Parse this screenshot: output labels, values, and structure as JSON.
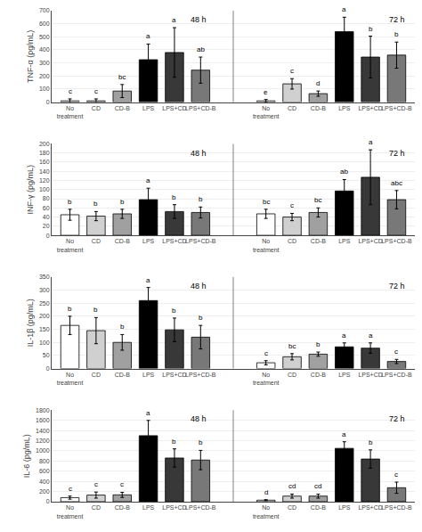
{
  "chart_data": [
    {
      "type": "bar",
      "ylabel": "TNF-α (pg/mL)",
      "ylim": [
        0,
        700
      ],
      "yticks": [
        0,
        100,
        200,
        300,
        400,
        500,
        600,
        700
      ],
      "grid": true,
      "categories": [
        "No\ntreatment",
        "CD",
        "CD-B",
        "LPS",
        "LPS+CD",
        "LPS+CD-B"
      ],
      "colors": [
        "#ffffff",
        "#d0d0d0",
        "#a0a0a0",
        "#000000",
        "#383838",
        "#787878"
      ],
      "edge_color": "#000000",
      "error_color": "#000000",
      "groups": [
        {
          "label": "48 h",
          "values": [
            10,
            10,
            85,
            325,
            380,
            245
          ],
          "errors": [
            15,
            15,
            50,
            120,
            190,
            100
          ],
          "annotations": [
            "c",
            "c",
            "bc",
            "a",
            "a",
            "ab"
          ]
        },
        {
          "label": "72 h",
          "values": [
            10,
            140,
            65,
            540,
            345,
            360
          ],
          "errors": [
            10,
            40,
            20,
            110,
            160,
            100
          ],
          "annotations": [
            "e",
            "c",
            "d",
            "a",
            "b",
            "b"
          ]
        }
      ]
    },
    {
      "type": "bar",
      "ylabel": "INF-γ (pg/mL)",
      "ylim": [
        0,
        200
      ],
      "yticks": [
        0,
        20,
        40,
        60,
        80,
        100,
        120,
        140,
        160,
        180,
        200
      ],
      "grid": true,
      "categories": [
        "No\ntreatment",
        "CD",
        "CD-B",
        "LPS",
        "LPS+CD",
        "LPS+CD-B"
      ],
      "colors": [
        "#ffffff",
        "#d0d0d0",
        "#a0a0a0",
        "#000000",
        "#383838",
        "#787878"
      ],
      "edge_color": "#000000",
      "error_color": "#000000",
      "groups": [
        {
          "label": "48 h",
          "values": [
            45,
            42,
            47,
            78,
            52,
            50
          ],
          "errors": [
            12,
            10,
            10,
            25,
            15,
            12
          ],
          "annotations": [
            "b",
            "b",
            "b",
            "a",
            "b",
            "b"
          ]
        },
        {
          "label": "72 h",
          "values": [
            47,
            40,
            50,
            97,
            127,
            78
          ],
          "errors": [
            10,
            8,
            10,
            25,
            60,
            20
          ],
          "annotations": [
            "bc",
            "c",
            "bc",
            "ab",
            "a",
            "abc"
          ]
        }
      ]
    },
    {
      "type": "bar",
      "ylabel": "IL-1β (pg/mL)",
      "ylim": [
        0,
        350
      ],
      "yticks": [
        0,
        50,
        100,
        150,
        200,
        250,
        300,
        350
      ],
      "grid": true,
      "categories": [
        "No\ntreatment",
        "CD",
        "CD-B",
        "LPS",
        "LPS+CD",
        "LPS+CD-B"
      ],
      "colors": [
        "#ffffff",
        "#d0d0d0",
        "#a0a0a0",
        "#000000",
        "#383838",
        "#787878"
      ],
      "edge_color": "#000000",
      "error_color": "#000000",
      "groups": [
        {
          "label": "48 h",
          "values": [
            165,
            145,
            100,
            260,
            148,
            120
          ],
          "errors": [
            35,
            50,
            30,
            50,
            45,
            45
          ],
          "annotations": [
            "b",
            "b",
            "b",
            "a",
            "b",
            "b"
          ]
        },
        {
          "label": "72 h",
          "values": [
            22,
            45,
            55,
            83,
            78,
            27
          ],
          "errors": [
            8,
            12,
            8,
            15,
            20,
            8
          ],
          "annotations": [
            "c",
            "bc",
            "b",
            "a",
            "a",
            "c"
          ]
        }
      ]
    },
    {
      "type": "bar",
      "ylabel": "IL-6 (pg/mL)",
      "ylim": [
        0,
        1800
      ],
      "yticks": [
        0,
        200,
        400,
        600,
        800,
        1000,
        1200,
        1400,
        1600,
        1800
      ],
      "grid": true,
      "categories": [
        "No\ntreatment",
        "CD",
        "CD-B",
        "LPS",
        "LPS+CD",
        "LPS+CD-B"
      ],
      "colors": [
        "#ffffff",
        "#d0d0d0",
        "#a0a0a0",
        "#000000",
        "#383838",
        "#787878"
      ],
      "edge_color": "#000000",
      "error_color": "#000000",
      "groups": [
        {
          "label": "48 h",
          "values": [
            80,
            130,
            135,
            1300,
            860,
            820
          ],
          "errors": [
            30,
            60,
            50,
            300,
            180,
            190
          ],
          "annotations": [
            "c",
            "c",
            "c",
            "a",
            "b",
            "b"
          ]
        },
        {
          "label": "72 h",
          "values": [
            30,
            110,
            110,
            1050,
            840,
            275
          ],
          "errors": [
            10,
            40,
            40,
            130,
            180,
            110
          ],
          "annotations": [
            "d",
            "cd",
            "cd",
            "a",
            "b",
            "c"
          ]
        }
      ]
    }
  ]
}
